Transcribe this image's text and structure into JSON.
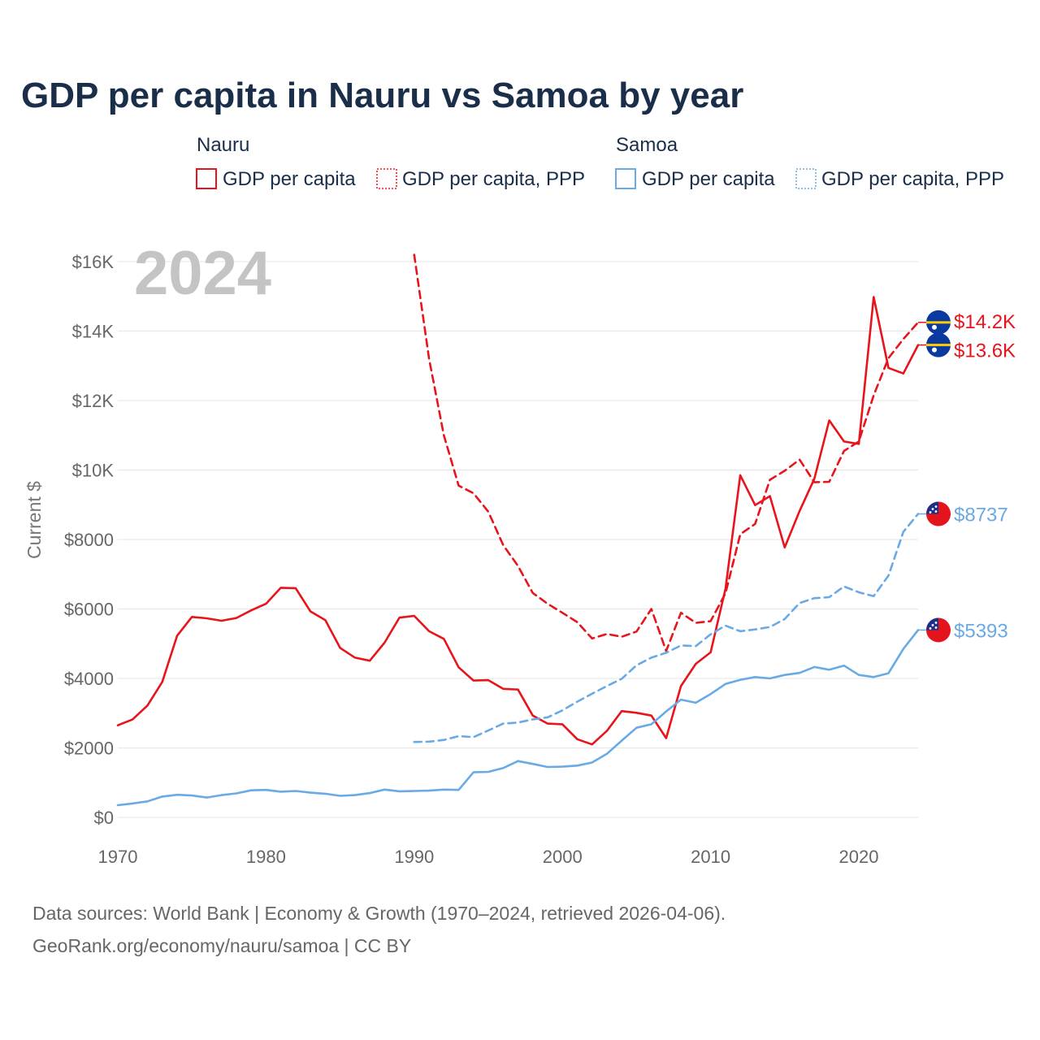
{
  "page": {
    "title": "GDP per capita in Nauru vs Samoa by year",
    "year_watermark": "2024",
    "source_line1": "Data sources: World Bank | Economy & Growth (1970–2024, retrieved 2026-04-06).",
    "source_line2": "GeoRank.org/economy/nauru/samoa | CC BY"
  },
  "legend": {
    "groups": [
      {
        "name": "Nauru",
        "color": "#e8141c",
        "items": [
          {
            "label": "GDP per capita",
            "style": "solid"
          },
          {
            "label": "GDP per capita, PPP",
            "style": "dotted"
          }
        ]
      },
      {
        "name": "Samoa",
        "color": "#6aaae4",
        "items": [
          {
            "label": "GDP per capita",
            "style": "solid"
          },
          {
            "label": "GDP per capita, PPP",
            "style": "dotted"
          }
        ]
      }
    ]
  },
  "chart_data": {
    "type": "line",
    "title": "GDP per capita in Nauru vs Samoa by year",
    "xlabel": "",
    "ylabel": "Current $",
    "xlim": [
      1970,
      2024
    ],
    "ylim": [
      0,
      16000
    ],
    "x_ticks": [
      1970,
      1980,
      1990,
      2000,
      2010,
      2020
    ],
    "y_ticks": [
      0,
      2000,
      4000,
      6000,
      8000,
      10000,
      12000,
      14000,
      16000
    ],
    "y_tick_labels": [
      "$0",
      "$2000",
      "$4000",
      "$6000",
      "$8000",
      "$10K",
      "$12K",
      "$14K",
      "$16K"
    ],
    "grid": true,
    "series": [
      {
        "name": "Nauru GDP per capita",
        "country": "Nauru",
        "color": "#e8141c",
        "dash": "solid",
        "end_label": "$13.6K",
        "x": [
          1970,
          1971,
          1972,
          1973,
          1974,
          1975,
          1976,
          1977,
          1978,
          1979,
          1980,
          1981,
          1982,
          1983,
          1984,
          1985,
          1986,
          1987,
          1988,
          1989,
          1990,
          1991,
          1992,
          1993,
          1994,
          1995,
          1996,
          1997,
          1998,
          1999,
          2000,
          2001,
          2002,
          2003,
          2004,
          2005,
          2006,
          2007,
          2008,
          2009,
          2010,
          2011,
          2012,
          2013,
          2014,
          2015,
          2016,
          2017,
          2018,
          2019,
          2020,
          2021,
          2022,
          2023,
          2024
        ],
        "values": [
          2650,
          2820,
          3220,
          3900,
          5230,
          5770,
          5730,
          5660,
          5740,
          5960,
          6150,
          6610,
          6600,
          5930,
          5680,
          4880,
          4600,
          4510,
          5030,
          5750,
          5800,
          5360,
          5140,
          4320,
          3940,
          3950,
          3700,
          3680,
          2930,
          2700,
          2680,
          2250,
          2100,
          2490,
          3060,
          3010,
          2930,
          2280,
          3780,
          4420,
          4750,
          6580,
          9850,
          8990,
          9250,
          7770,
          8820,
          9750,
          11430,
          10820,
          10750,
          14980,
          12940,
          12780,
          13600
        ]
      },
      {
        "name": "Nauru GDP per capita, PPP",
        "country": "Nauru",
        "color": "#e8141c",
        "dash": "dashed",
        "end_label": "$14.2K",
        "x": [
          1990,
          1991,
          1992,
          1993,
          1994,
          1995,
          1996,
          1997,
          1998,
          1999,
          2000,
          2001,
          2002,
          2003,
          2004,
          2005,
          2006,
          2007,
          2008,
          2009,
          2010,
          2011,
          2012,
          2013,
          2014,
          2015,
          2016,
          2017,
          2018,
          2019,
          2020,
          2021,
          2022,
          2023,
          2024
        ],
        "values": [
          16200,
          13200,
          11000,
          9550,
          9330,
          8800,
          7840,
          7240,
          6460,
          6150,
          5890,
          5620,
          5150,
          5280,
          5200,
          5350,
          6000,
          4790,
          5890,
          5600,
          5650,
          6450,
          8150,
          8450,
          9720,
          9980,
          10300,
          9650,
          9660,
          10550,
          10820,
          12150,
          13220,
          13770,
          14250
        ]
      },
      {
        "name": "Samoa GDP per capita",
        "country": "Samoa",
        "color": "#6aaae4",
        "dash": "solid",
        "end_label": "$5393",
        "x": [
          1970,
          1971,
          1972,
          1973,
          1974,
          1975,
          1976,
          1977,
          1978,
          1979,
          1980,
          1981,
          1982,
          1983,
          1984,
          1985,
          1986,
          1987,
          1988,
          1989,
          1990,
          1991,
          1992,
          1993,
          1994,
          1995,
          1996,
          1997,
          1998,
          1999,
          2000,
          2001,
          2002,
          2003,
          2004,
          2005,
          2006,
          2007,
          2008,
          2009,
          2010,
          2011,
          2012,
          2013,
          2014,
          2015,
          2016,
          2017,
          2018,
          2019,
          2020,
          2021,
          2022,
          2023,
          2024
        ],
        "values": [
          350,
          400,
          460,
          600,
          650,
          630,
          570,
          640,
          690,
          780,
          790,
          740,
          760,
          710,
          680,
          620,
          640,
          700,
          800,
          750,
          760,
          770,
          800,
          790,
          1300,
          1310,
          1420,
          1620,
          1540,
          1450,
          1460,
          1490,
          1580,
          1830,
          2210,
          2580,
          2680,
          3050,
          3390,
          3300,
          3550,
          3840,
          3960,
          4040,
          4000,
          4100,
          4160,
          4330,
          4250,
          4370,
          4100,
          4040,
          4150,
          4850,
          5393
        ]
      },
      {
        "name": "Samoa GDP per capita, PPP",
        "country": "Samoa",
        "color": "#6aaae4",
        "dash": "dashed",
        "end_label": "$8737",
        "x": [
          1990,
          1991,
          1992,
          1993,
          1994,
          1995,
          1996,
          1997,
          1998,
          1999,
          2000,
          2001,
          2002,
          2003,
          2004,
          2005,
          2006,
          2007,
          2008,
          2009,
          2010,
          2011,
          2012,
          2013,
          2014,
          2015,
          2016,
          2017,
          2018,
          2019,
          2020,
          2021,
          2022,
          2023,
          2024
        ],
        "values": [
          2170,
          2180,
          2230,
          2340,
          2310,
          2500,
          2700,
          2730,
          2820,
          2880,
          3080,
          3330,
          3560,
          3780,
          3990,
          4380,
          4600,
          4740,
          4950,
          4930,
          5270,
          5520,
          5360,
          5410,
          5480,
          5710,
          6170,
          6310,
          6340,
          6650,
          6480,
          6370,
          6960,
          8220,
          8737
        ]
      }
    ]
  }
}
